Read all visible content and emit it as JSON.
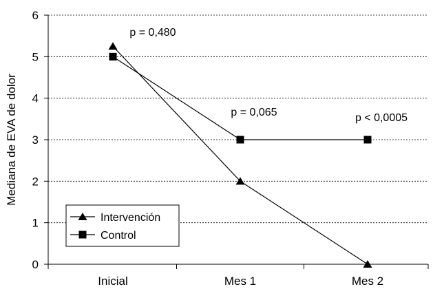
{
  "chart_data": {
    "type": "line",
    "categories": [
      "Inicial",
      "Mes 1",
      "Mes 2"
    ],
    "series": [
      {
        "name": "Intervención",
        "values": [
          5.25,
          2,
          0
        ],
        "marker": "triangle",
        "color": "#000000"
      },
      {
        "name": "Control",
        "values": [
          5,
          3,
          3
        ],
        "marker": "square",
        "color": "#000000"
      }
    ],
    "ylabel": "Mediana de EVA de dolor",
    "xlabel": "",
    "ylim": [
      0,
      6
    ],
    "yticks": [
      0,
      1,
      2,
      3,
      4,
      5,
      6
    ],
    "grid": "horizontal dotted",
    "legend_position": "bottom-left",
    "annotations": [
      {
        "category": "Inicial",
        "text": "p = 0,480"
      },
      {
        "category": "Mes 1",
        "text": "p = 0,065"
      },
      {
        "category": "Mes 2",
        "text": "p < 0,0005"
      }
    ]
  }
}
